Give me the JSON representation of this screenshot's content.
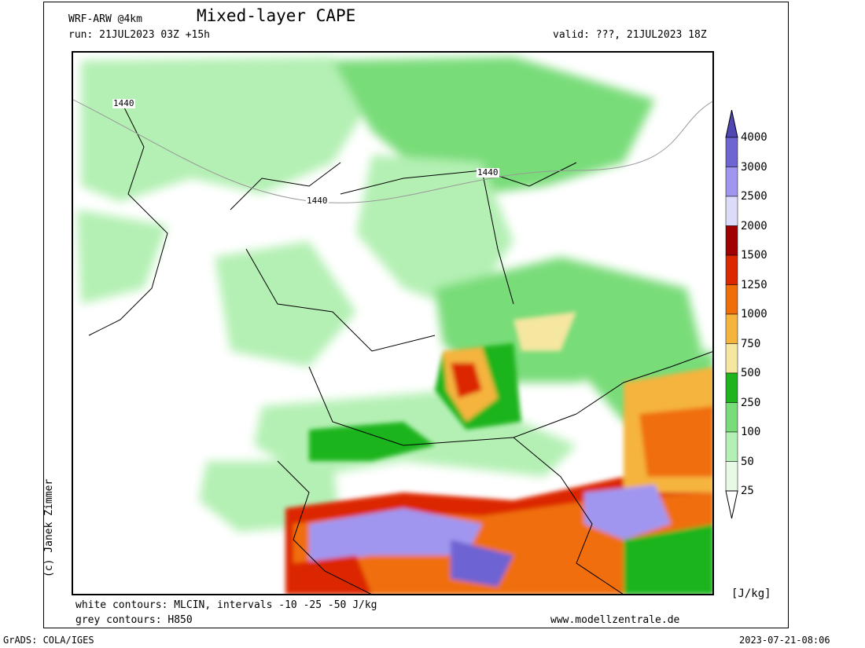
{
  "header": {
    "model": "WRF-ARW @4km",
    "title": "Mixed-layer CAPE",
    "run": "run: 21JUL2023 03Z +15h",
    "valid": "valid: ???, 21JUL2023 18Z"
  },
  "map": {
    "height_labels": [
      "1440",
      "1440",
      "1440"
    ]
  },
  "legend": {
    "unit": "[J/kg]",
    "levels": [
      "25",
      "50",
      "100",
      "250",
      "500",
      "750",
      "1000",
      "1250",
      "1500",
      "2000",
      "2500",
      "3000",
      "4000"
    ],
    "colors": [
      "#e6fae6",
      "#b4f0b4",
      "#78dc78",
      "#1eb41e",
      "#f5e6a0",
      "#f5b43c",
      "#f06e0a",
      "#dc2800",
      "#a00000",
      "#dcdcfa",
      "#a096f0",
      "#6e64d2",
      "#5046b4"
    ]
  },
  "footer": {
    "line1": "white contours: MLCIN, intervals -10 -25 -50 J/kg",
    "line2": "grey contours: H850",
    "website": "www.modellzentrale.de",
    "credit": "(c) Janek Zimmer",
    "software": "GrADS: COLA/IGES",
    "timestamp": "2023-07-21-08:06"
  }
}
